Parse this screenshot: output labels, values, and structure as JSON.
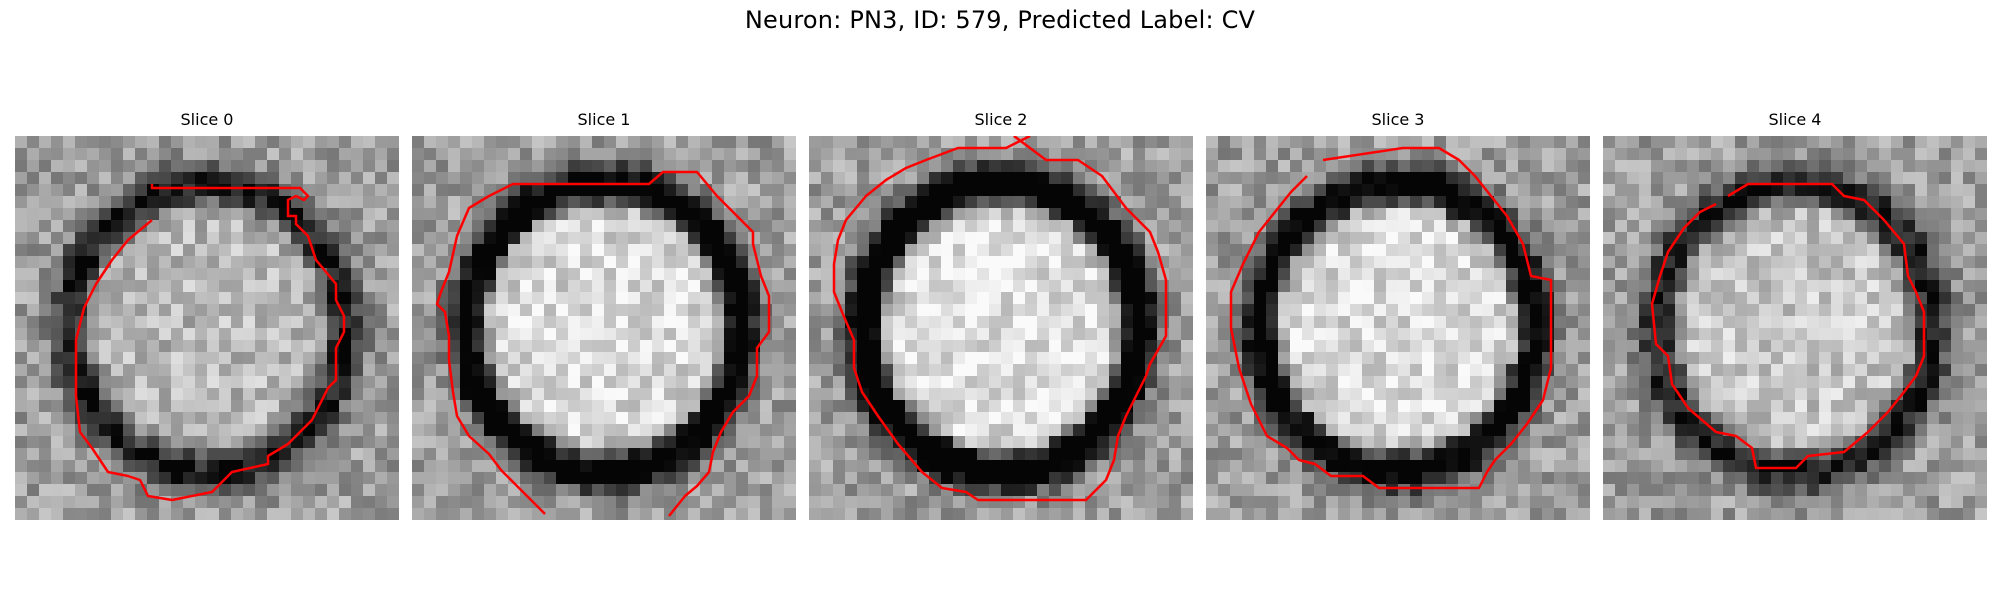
{
  "figure": {
    "title": "Neuron: PN3, ID: 579, Predicted Label: CV"
  },
  "slices": [
    {
      "label": "Slice 0",
      "ring_darkness": 0.55,
      "inner_brightness": 0.72,
      "contour_color": "#ff0000"
    },
    {
      "label": "Slice 1",
      "ring_darkness": 0.75,
      "inner_brightness": 0.85,
      "contour_color": "#ff0000"
    },
    {
      "label": "Slice 2",
      "ring_darkness": 0.85,
      "inner_brightness": 0.88,
      "contour_color": "#ff0000"
    },
    {
      "label": "Slice 3",
      "ring_darkness": 0.7,
      "inner_brightness": 0.86,
      "contour_color": "#ff0000"
    },
    {
      "label": "Slice 4",
      "ring_darkness": 0.55,
      "inner_brightness": 0.78,
      "contour_color": "#ff0000"
    }
  ]
}
